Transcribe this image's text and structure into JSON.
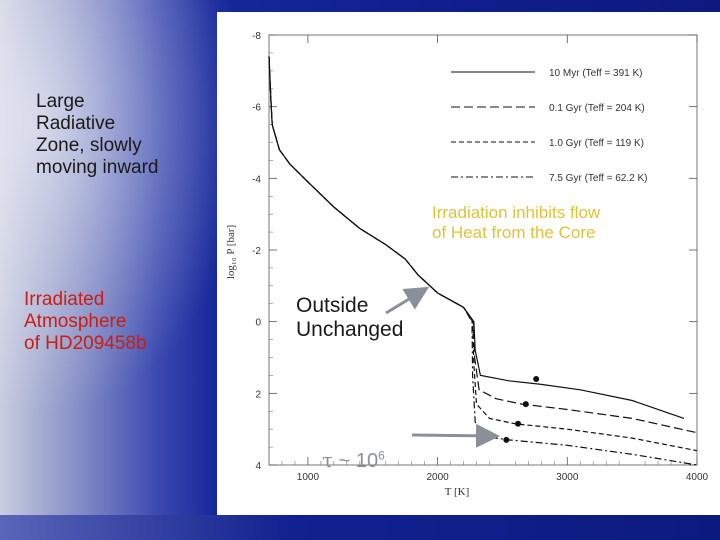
{
  "slide": {
    "left_note": "Large\nRadiative\nZone, slowly\nmoving inward",
    "atmosphere_note": "Irradiated\nAtmosphere\nof HD209458b",
    "irradiation_note": "Irradiation inhibits flow\nof Heat from the Core",
    "outside_note": "Outside\nUnchanged",
    "tau_symbol": "τ",
    "tau_text": " ~ 10",
    "tau_exponent": "6",
    "colors": {
      "left_note": "#1a1a1a",
      "atmosphere_note": "#cc1d10",
      "irradiation_note": "#e0c23a",
      "outside_note": "#1a1a1a",
      "arrow": "#8a8f99"
    }
  },
  "chart_data": {
    "type": "line",
    "xlabel": "T [K]",
    "ylabel": "log₁₀ P [bar]",
    "xlim": [
      700,
      4000
    ],
    "ylim": [
      -8,
      4
    ],
    "y_inverted": true,
    "x_ticks": [
      1000,
      2000,
      3000,
      4000
    ],
    "x_tick_labels": [
      "1000",
      "2000",
      "3000",
      "4000"
    ],
    "y_ticks": [
      -8,
      -6,
      -4,
      -2,
      0,
      2,
      4
    ],
    "y_tick_labels": [
      "-8",
      "-6",
      "-4",
      "-2",
      "0",
      "2",
      "4"
    ],
    "legend_position": "top-right",
    "series": [
      {
        "name": "10 Myr (Teff = 391 K)",
        "dash": "solid",
        "points": [
          [
            700,
            -7.4
          ],
          [
            715,
            -6.2
          ],
          [
            725,
            -5.5
          ],
          [
            780,
            -4.8
          ],
          [
            860,
            -4.4
          ],
          [
            1000,
            -3.9
          ],
          [
            1200,
            -3.2
          ],
          [
            1400,
            -2.6
          ],
          [
            1600,
            -2.15
          ],
          [
            1750,
            -1.75
          ],
          [
            1850,
            -1.3
          ],
          [
            2000,
            -0.8
          ],
          [
            2200,
            -0.4
          ],
          [
            2280,
            0
          ],
          [
            2290,
            0.8
          ],
          [
            2330,
            1.5
          ],
          [
            2550,
            1.65
          ],
          [
            2800,
            1.75
          ],
          [
            3100,
            1.9
          ],
          [
            3500,
            2.2
          ],
          [
            3900,
            2.7
          ]
        ],
        "marker": [
          2760,
          1.6
        ]
      },
      {
        "name": "0.1 Gyr (Teff = 204 K)",
        "dash": "long-dash",
        "points": [
          [
            700,
            -7.4
          ],
          [
            715,
            -6.2
          ],
          [
            725,
            -5.5
          ],
          [
            780,
            -4.8
          ],
          [
            860,
            -4.4
          ],
          [
            1000,
            -3.9
          ],
          [
            1200,
            -3.2
          ],
          [
            1400,
            -2.6
          ],
          [
            1600,
            -2.15
          ],
          [
            1750,
            -1.75
          ],
          [
            1850,
            -1.3
          ],
          [
            2000,
            -0.8
          ],
          [
            2200,
            -0.4
          ],
          [
            2275,
            0
          ],
          [
            2285,
            1.0
          ],
          [
            2320,
            1.9
          ],
          [
            2450,
            2.15
          ],
          [
            2650,
            2.3
          ],
          [
            3000,
            2.45
          ],
          [
            3500,
            2.7
          ],
          [
            4000,
            3.1
          ]
        ],
        "marker": [
          2680,
          2.3
        ]
      },
      {
        "name": "1.0 Gyr (Teff = 119 K)",
        "dash": "short-dash",
        "points": [
          [
            700,
            -7.4
          ],
          [
            715,
            -6.2
          ],
          [
            725,
            -5.5
          ],
          [
            780,
            -4.8
          ],
          [
            860,
            -4.4
          ],
          [
            1000,
            -3.9
          ],
          [
            1200,
            -3.2
          ],
          [
            1400,
            -2.6
          ],
          [
            1600,
            -2.15
          ],
          [
            1750,
            -1.75
          ],
          [
            1850,
            -1.3
          ],
          [
            2000,
            -0.8
          ],
          [
            2200,
            -0.4
          ],
          [
            2270,
            0
          ],
          [
            2280,
            1.2
          ],
          [
            2300,
            2.3
          ],
          [
            2400,
            2.7
          ],
          [
            2600,
            2.85
          ],
          [
            3000,
            3.0
          ],
          [
            3500,
            3.25
          ],
          [
            4000,
            3.6
          ]
        ],
        "marker": [
          2620,
          2.85
        ]
      },
      {
        "name": "7.5 Gyr (Teff = 62.2 K)",
        "dash": "dash-dot",
        "points": [
          [
            700,
            -7.4
          ],
          [
            715,
            -6.2
          ],
          [
            725,
            -5.5
          ],
          [
            780,
            -4.8
          ],
          [
            860,
            -4.4
          ],
          [
            1000,
            -3.9
          ],
          [
            1200,
            -3.2
          ],
          [
            1400,
            -2.6
          ],
          [
            1600,
            -2.15
          ],
          [
            1750,
            -1.75
          ],
          [
            1850,
            -1.3
          ],
          [
            2000,
            -0.8
          ],
          [
            2200,
            -0.4
          ],
          [
            2265,
            0
          ],
          [
            2270,
            1.5
          ],
          [
            2290,
            2.8
          ],
          [
            2350,
            3.2
          ],
          [
            2550,
            3.3
          ],
          [
            3000,
            3.45
          ],
          [
            3500,
            3.7
          ],
          [
            4000,
            4.0
          ]
        ],
        "marker": [
          2530,
          3.3
        ]
      }
    ]
  }
}
